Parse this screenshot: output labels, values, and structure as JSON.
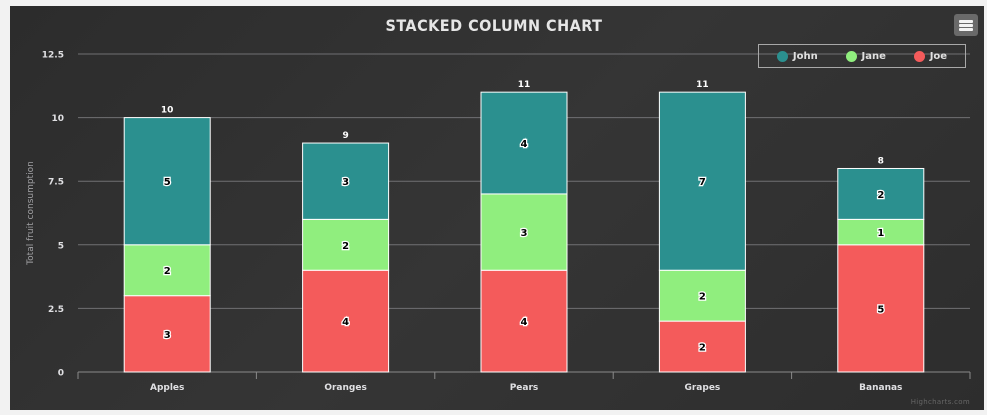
{
  "chart_data": {
    "type": "bar",
    "stacked": true,
    "title": "STACKED COLUMN CHART",
    "ylabel": "Total fruit consumption",
    "xlabel": "",
    "categories": [
      "Apples",
      "Oranges",
      "Pears",
      "Grapes",
      "Bananas"
    ],
    "series": [
      {
        "name": "John",
        "color": "#2b908f",
        "values": [
          5,
          3,
          4,
          7,
          2
        ]
      },
      {
        "name": "Jane",
        "color": "#90ee7e",
        "values": [
          2,
          2,
          3,
          2,
          1
        ]
      },
      {
        "name": "Joe",
        "color": "#f45b5b",
        "values": [
          3,
          4,
          4,
          2,
          5
        ]
      }
    ],
    "totals": [
      10,
      9,
      11,
      11,
      8
    ],
    "ylim": [
      0,
      12.5
    ],
    "yticks": [
      "0",
      "2.5",
      "5",
      "7.5",
      "10",
      "12.5"
    ],
    "grid": true,
    "legend_position": "top-right"
  },
  "credits": "Highcharts.com",
  "menu_icon": "hamburger-menu-icon"
}
